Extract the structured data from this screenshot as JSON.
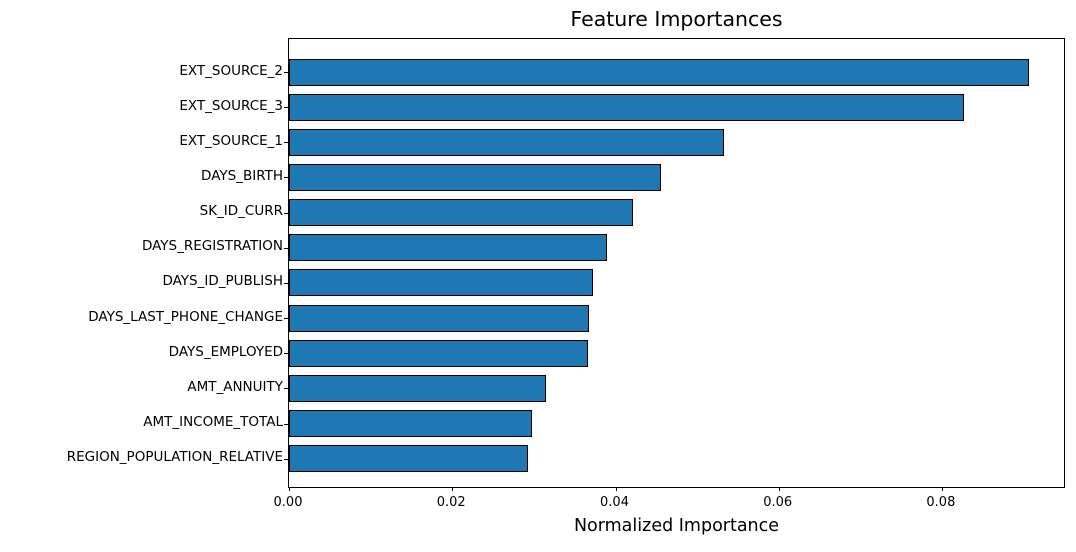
{
  "chart_data": {
    "type": "bar",
    "orientation": "horizontal",
    "title": "Feature Importances",
    "xlabel": "Normalized Importance",
    "ylabel": "",
    "categories": [
      "EXT_SOURCE_2",
      "EXT_SOURCE_3",
      "EXT_SOURCE_1",
      "DAYS_BIRTH",
      "SK_ID_CURR",
      "DAYS_REGISTRATION",
      "DAYS_ID_PUBLISH",
      "DAYS_LAST_PHONE_CHANGE",
      "DAYS_EMPLOYED",
      "AMT_ANNUITY",
      "AMT_INCOME_TOTAL",
      "REGION_POPULATION_RELATIVE"
    ],
    "values": [
      0.0906,
      0.0827,
      0.0533,
      0.0456,
      0.0422,
      0.0389,
      0.0373,
      0.0368,
      0.0366,
      0.0315,
      0.0298,
      0.0293
    ],
    "xlim": [
      0,
      0.0952
    ],
    "xtick_labels": [
      "0.00",
      "0.02",
      "0.04",
      "0.06",
      "0.08"
    ],
    "xtick_values": [
      0.0,
      0.02,
      0.04,
      0.06,
      0.08
    ],
    "grid": false,
    "legend_position": "none",
    "bar_color": "#1f77b4",
    "bar_edge_color": "#000000",
    "text_color": "#000000",
    "background_color": "#ffffff"
  }
}
